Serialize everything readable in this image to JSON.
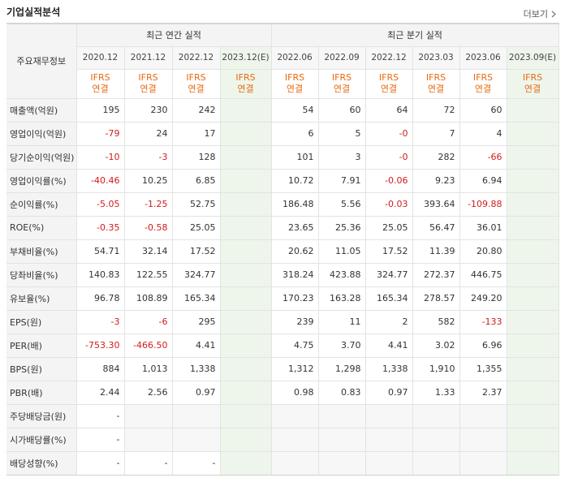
{
  "section": {
    "title": "기업실적분석",
    "more_label": "더보기"
  },
  "header": {
    "row_header": "주요재무정보",
    "annual_title": "최근 연간 실적",
    "quarter_title": "최근 분기 실적",
    "annual_periods": [
      "2020.12",
      "2021.12",
      "2022.12",
      "2023.12(E)"
    ],
    "quarter_periods": [
      "2022.06",
      "2022.09",
      "2022.12",
      "2023.03",
      "2023.06",
      "2023.09(E)"
    ],
    "basis_line1": "IFRS",
    "basis_line2": "연결",
    "estimate_flags": [
      false,
      false,
      false,
      true,
      false,
      false,
      false,
      false,
      false,
      true
    ]
  },
  "rows": [
    {
      "label": "매출액(억원)",
      "values": [
        "195",
        "230",
        "242",
        "",
        "54",
        "60",
        "64",
        "72",
        "60",
        ""
      ]
    },
    {
      "label": "영업이익(억원)",
      "values": [
        "-79",
        "24",
        "17",
        "",
        "6",
        "5",
        "-0",
        "7",
        "4",
        ""
      ]
    },
    {
      "label": "당기순이익(억원)",
      "values": [
        "-10",
        "-3",
        "128",
        "",
        "101",
        "3",
        "-0",
        "282",
        "-66",
        ""
      ]
    },
    {
      "label": "영업이익률(%)",
      "values": [
        "-40.46",
        "10.25",
        "6.85",
        "",
        "10.72",
        "7.91",
        "-0.06",
        "9.23",
        "6.94",
        ""
      ]
    },
    {
      "label": "순이익률(%)",
      "values": [
        "-5.05",
        "-1.25",
        "52.75",
        "",
        "186.48",
        "5.56",
        "-0.03",
        "393.64",
        "-109.88",
        ""
      ]
    },
    {
      "label": "ROE(%)",
      "values": [
        "-0.35",
        "-0.58",
        "25.05",
        "",
        "23.65",
        "25.36",
        "25.05",
        "56.47",
        "36.01",
        ""
      ]
    },
    {
      "label": "부채비율(%)",
      "values": [
        "54.71",
        "32.14",
        "17.52",
        "",
        "20.62",
        "11.05",
        "17.52",
        "11.39",
        "20.80",
        ""
      ]
    },
    {
      "label": "당좌비율(%)",
      "values": [
        "140.83",
        "122.55",
        "324.77",
        "",
        "318.24",
        "423.88",
        "324.77",
        "272.37",
        "446.75",
        ""
      ]
    },
    {
      "label": "유보율(%)",
      "values": [
        "96.78",
        "108.89",
        "165.34",
        "",
        "170.23",
        "163.28",
        "165.34",
        "278.57",
        "249.20",
        ""
      ]
    },
    {
      "label": "EPS(원)",
      "values": [
        "-3",
        "-6",
        "295",
        "",
        "239",
        "11",
        "2",
        "582",
        "-133",
        ""
      ]
    },
    {
      "label": "PER(배)",
      "values": [
        "-753.30",
        "-466.50",
        "4.41",
        "",
        "4.75",
        "3.70",
        "4.41",
        "3.02",
        "6.96",
        ""
      ]
    },
    {
      "label": "BPS(원)",
      "values": [
        "884",
        "1,013",
        "1,338",
        "",
        "1,312",
        "1,298",
        "1,338",
        "1,910",
        "1,355",
        ""
      ]
    },
    {
      "label": "PBR(배)",
      "values": [
        "2.44",
        "2.56",
        "0.97",
        "",
        "0.98",
        "0.83",
        "0.97",
        "1.33",
        "2.37",
        ""
      ]
    },
    {
      "label": "주당배당금(원)",
      "values": [
        "-",
        "",
        "",
        "",
        "",
        "",
        "",
        "",
        "",
        ""
      ]
    },
    {
      "label": "시가배당률(%)",
      "values": [
        "-",
        "",
        "",
        "",
        "",
        "",
        "",
        "",
        "",
        ""
      ]
    },
    {
      "label": "배당성향(%)",
      "values": [
        "-",
        "-",
        "-",
        "",
        "",
        "",
        "",
        "",
        "",
        ""
      ]
    }
  ],
  "colors": {
    "negative": "#d11b1b",
    "ifrs": "#e86a10",
    "estimate_bg": "#eef6ec"
  }
}
